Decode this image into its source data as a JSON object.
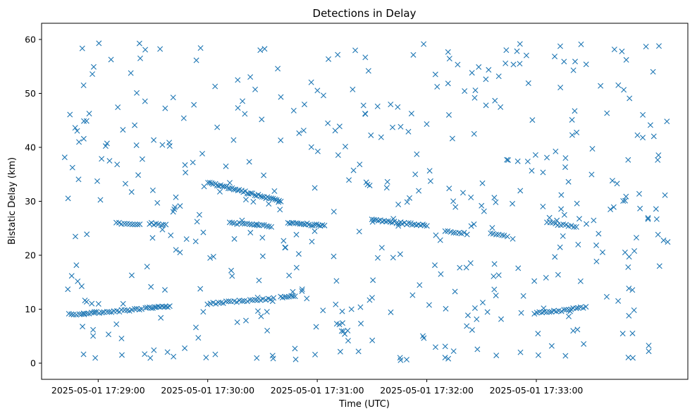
{
  "chart_data": {
    "type": "scatter",
    "title": "Detections in Delay",
    "xlabel": "Time (UTC)",
    "ylabel": "Bistatic Delay (km)",
    "marker": "x",
    "color": "#1f77b4",
    "x_unit": "seconds since 2025-05-01 17:28:00",
    "xlim": [
      29,
      383
    ],
    "ylim": [
      -3,
      63
    ],
    "x_ticks": [
      {
        "value": 60,
        "label": "2025-05-01 17:29:00"
      },
      {
        "value": 120,
        "label": "2025-05-01 17:30:00"
      },
      {
        "value": 180,
        "label": "2025-05-01 17:31:00"
      },
      {
        "value": 240,
        "label": "2025-05-01 17:32:00"
      },
      {
        "value": 300,
        "label": "2025-05-01 17:33:00"
      }
    ],
    "y_ticks": [
      {
        "value": 0,
        "label": "0"
      },
      {
        "value": 10,
        "label": "10"
      },
      {
        "value": 20,
        "label": "20"
      },
      {
        "value": 30,
        "label": "30"
      },
      {
        "value": 40,
        "label": "40"
      },
      {
        "value": 50,
        "label": "50"
      },
      {
        "value": 60,
        "label": "60"
      }
    ],
    "tracks": [
      {
        "name": "track-low-1",
        "x_start": 44,
        "x_end": 84,
        "y_start": 9.0,
        "y_end": 10.0,
        "count": 30
      },
      {
        "name": "track-low-2",
        "x_start": 86,
        "x_end": 99,
        "y_start": 10.2,
        "y_end": 10.5,
        "count": 14
      },
      {
        "name": "track-low-3",
        "x_start": 120,
        "x_end": 156,
        "y_start": 11.0,
        "y_end": 12.0,
        "count": 26
      },
      {
        "name": "track-low-4",
        "x_start": 160,
        "x_end": 168,
        "y_start": 12.2,
        "y_end": 12.4,
        "count": 8
      },
      {
        "name": "track-low-5",
        "x_start": 299,
        "x_end": 327,
        "y_start": 9.2,
        "y_end": 10.3,
        "count": 22
      },
      {
        "name": "track-mid-1",
        "x_start": 70,
        "x_end": 83,
        "y_start": 26.0,
        "y_end": 25.8,
        "count": 10
      },
      {
        "name": "track-mid-2",
        "x_start": 88,
        "x_end": 97,
        "y_start": 25.9,
        "y_end": 25.6,
        "count": 8
      },
      {
        "name": "track-mid-3",
        "x_start": 120,
        "x_end": 160,
        "y_start": 33.5,
        "y_end": 30.0,
        "count": 40
      },
      {
        "name": "track-mid-4",
        "x_start": 132,
        "x_end": 155,
        "y_start": 26.0,
        "y_end": 25.4,
        "count": 18
      },
      {
        "name": "track-mid-5",
        "x_start": 164,
        "x_end": 184,
        "y_start": 26.0,
        "y_end": 25.5,
        "count": 20
      },
      {
        "name": "track-mid-6",
        "x_start": 210,
        "x_end": 240,
        "y_start": 26.5,
        "y_end": 25.5,
        "count": 28
      },
      {
        "name": "track-mid-7",
        "x_start": 250,
        "x_end": 262,
        "y_start": 24.5,
        "y_end": 24.0,
        "count": 9
      },
      {
        "name": "track-mid-8",
        "x_start": 275,
        "x_end": 284,
        "y_start": 24.2,
        "y_end": 23.6,
        "count": 7
      },
      {
        "name": "track-mid-9",
        "x_start": 306,
        "x_end": 322,
        "y_start": 26.0,
        "y_end": 25.3,
        "count": 12
      }
    ],
    "scatter": {
      "count": 460,
      "x_range": [
        41,
        372
      ],
      "y_range": [
        0.5,
        59.5
      ]
    }
  }
}
